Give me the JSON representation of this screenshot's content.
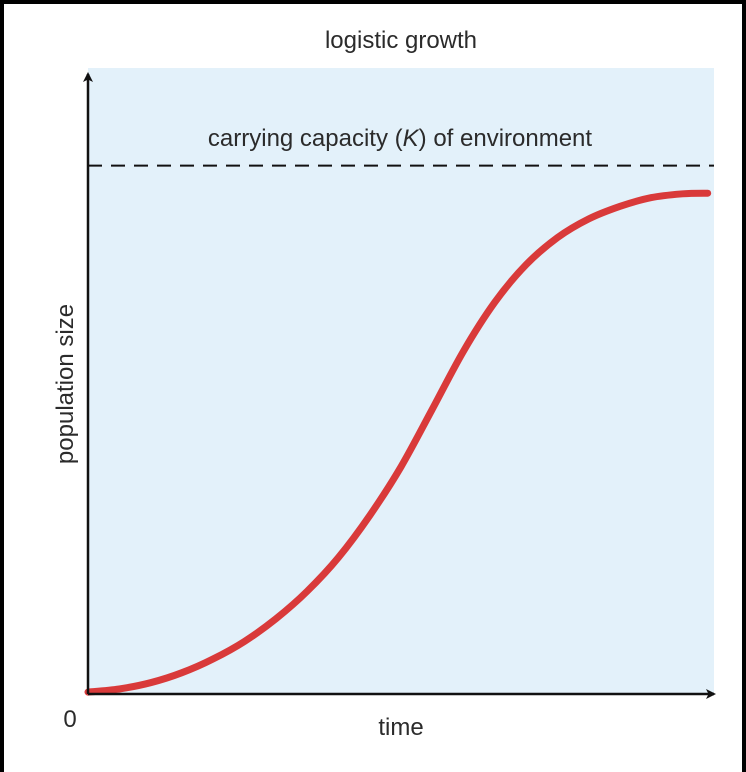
{
  "chart_data": {
    "type": "line",
    "title": "logistic growth",
    "xlabel": "time",
    "ylabel": "population size",
    "origin_label": "0",
    "annotations": [
      {
        "id": "carrying-capacity",
        "prefix": "carrying capacity (",
        "italic": "K",
        "suffix": ") of environment"
      }
    ],
    "xlim": [
      0,
      100
    ],
    "ylim": [
      0,
      100
    ],
    "carrying_capacity": 84.4,
    "series": [
      {
        "x": [
          0,
          5,
          10,
          15,
          20,
          25,
          30,
          35,
          40,
          45,
          50,
          55,
          60,
          65,
          70,
          75,
          80,
          85,
          90,
          95,
          99
        ],
        "y": [
          0.3,
          0.8,
          1.8,
          3.4,
          5.6,
          8.4,
          12.0,
          16.4,
          21.8,
          28.5,
          36.3,
          45.5,
          54.8,
          62.6,
          68.6,
          72.9,
          75.9,
          77.9,
          79.3,
          79.9,
          80.0
        ]
      }
    ],
    "grid": false,
    "legend": false
  },
  "colors": {
    "plot_background": "#e3f1fa",
    "curve": "#d93a3a",
    "axis": "#111111",
    "dashed_line": "#111111"
  }
}
